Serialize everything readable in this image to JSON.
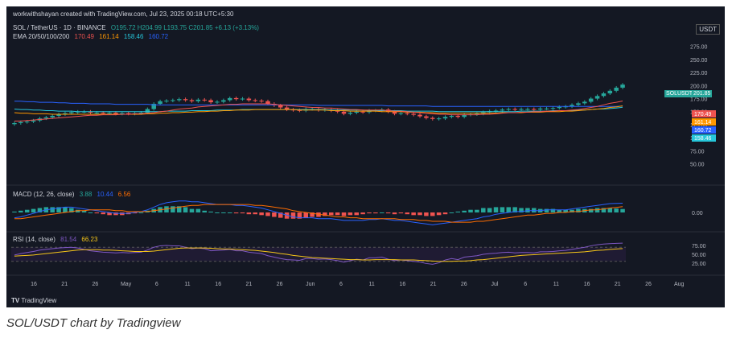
{
  "header": {
    "created_by": "workwithshayan created with TradingView.com, Jul 23, 2025 00:18 UTC+5:30",
    "symbol_line": "SOL / TetherUS · 1D · BINANCE",
    "ohlc": "O195.72  H204.99  L193.75  C201.85  +6.13 (+3.13%)",
    "ema_label": "EMA 20/50/100/200",
    "ema_values": [
      "170.49",
      "161.14",
      "158.46",
      "160.72"
    ],
    "currency": "USDT",
    "macd_label": "MACD (12, 26, close)",
    "macd_values": [
      "3.88",
      "10.44",
      "6.56"
    ],
    "rsi_label": "RSI (14, close)",
    "rsi_values": [
      "81.54",
      "66.23"
    ],
    "watermark": "TradingView",
    "symbol_tag": "SOLUSDT",
    "last_price": "201.85"
  },
  "caption": "SOL/USDT chart by Tradingview",
  "colors": {
    "up": "#26a69a",
    "down": "#ef5350",
    "ema20": "#ef5350",
    "ema50": "#ff9800",
    "ema100": "#26c6da",
    "ema200": "#2962ff",
    "macd": "#2962ff",
    "signal": "#ff6d00",
    "rsi": "#7e57c2",
    "rsi_ma": "#f5c518"
  },
  "chart_data": {
    "type": "candlestick",
    "price_axis_ticks": [
      "275.00",
      "250.00",
      "225.00",
      "200.00",
      "175.00",
      "150.00",
      "125.00",
      "100.00",
      "75.00",
      "50.00",
      "25.00"
    ],
    "price_ylim": [
      20,
      290
    ],
    "macd_ticks": [
      "0.00"
    ],
    "rsi_ticks": [
      "75.00",
      "50.00",
      "25.00"
    ],
    "x_ticks": [
      "16",
      "21",
      "26",
      "May",
      "6",
      "11",
      "16",
      "21",
      "26",
      "Jun",
      "6",
      "11",
      "16",
      "21",
      "26",
      "Jul",
      "6",
      "11",
      "16",
      "21",
      "26",
      "Aug"
    ],
    "closes": [
      128,
      130,
      131,
      133,
      137,
      139,
      142,
      145,
      147,
      149,
      150,
      150,
      148,
      148,
      147,
      148,
      146,
      147,
      146,
      147,
      148,
      155,
      165,
      170,
      171,
      172,
      174,
      172,
      170,
      173,
      172,
      168,
      169,
      172,
      176,
      174,
      175,
      172,
      171,
      170,
      165,
      162,
      158,
      154,
      153,
      152,
      155,
      155,
      153,
      154,
      152,
      150,
      146,
      148,
      150,
      149,
      152,
      152,
      154,
      150,
      146,
      147,
      146,
      144,
      141,
      138,
      136,
      137,
      140,
      142,
      140,
      144,
      145,
      146,
      149,
      151,
      152,
      154,
      155,
      154,
      155,
      155,
      154,
      156,
      156,
      157,
      159,
      160,
      163,
      166,
      169,
      175,
      180,
      185,
      190,
      196,
      201.85
    ],
    "ema20": [
      132,
      132,
      133,
      134,
      135,
      136,
      137,
      138,
      139,
      140,
      141,
      142,
      143,
      143,
      144,
      144,
      144,
      145,
      145,
      146,
      146,
      147,
      148,
      150,
      151,
      153,
      155,
      156,
      157,
      159,
      160,
      161,
      162,
      163,
      164,
      164,
      165,
      165,
      165,
      165,
      165,
      164,
      163,
      162,
      161,
      160,
      159,
      158,
      158,
      157,
      157,
      156,
      155,
      154,
      154,
      153,
      153,
      153,
      153,
      152,
      151,
      151,
      150,
      149,
      148,
      147,
      146,
      145,
      145,
      144,
      144,
      144,
      144,
      144,
      145,
      145,
      146,
      147,
      148,
      148,
      149,
      149,
      150,
      150,
      151,
      151,
      152,
      152,
      153,
      154,
      156,
      158,
      160,
      163,
      166,
      168,
      170.49
    ],
    "ema50": [
      148,
      147,
      147,
      146,
      146,
      146,
      145,
      145,
      145,
      145,
      145,
      145,
      145,
      145,
      145,
      145,
      145,
      145,
      145,
      145,
      145,
      146,
      146,
      147,
      147,
      148,
      148,
      149,
      149,
      150,
      150,
      151,
      151,
      152,
      152,
      153,
      153,
      153,
      154,
      154,
      154,
      154,
      154,
      154,
      154,
      153,
      153,
      153,
      153,
      153,
      152,
      152,
      152,
      151,
      151,
      151,
      151,
      151,
      150,
      150,
      150,
      150,
      149,
      149,
      149,
      148,
      148,
      147,
      147,
      147,
      147,
      147,
      147,
      147,
      147,
      147,
      147,
      148,
      148,
      148,
      148,
      149,
      149,
      149,
      150,
      150,
      150,
      151,
      151,
      152,
      153,
      154,
      155,
      156,
      158,
      159,
      161.14
    ],
    "ema100": [
      155,
      154,
      154,
      153,
      153,
      152,
      152,
      151,
      151,
      151,
      150,
      150,
      150,
      150,
      150,
      150,
      150,
      150,
      150,
      150,
      150,
      150,
      150,
      150,
      151,
      151,
      151,
      151,
      152,
      152,
      152,
      152,
      153,
      153,
      153,
      153,
      154,
      154,
      154,
      154,
      154,
      154,
      154,
      154,
      154,
      154,
      154,
      154,
      154,
      154,
      153,
      153,
      153,
      153,
      153,
      153,
      152,
      152,
      152,
      152,
      152,
      152,
      151,
      151,
      151,
      151,
      151,
      150,
      150,
      150,
      150,
      150,
      150,
      150,
      150,
      150,
      150,
      150,
      150,
      150,
      151,
      151,
      151,
      151,
      151,
      152,
      152,
      152,
      152,
      153,
      153,
      154,
      155,
      155,
      156,
      157,
      158.46
    ],
    "ema200": [
      170,
      170,
      169,
      169,
      168,
      168,
      168,
      167,
      167,
      166,
      166,
      166,
      165,
      165,
      165,
      165,
      164,
      164,
      164,
      164,
      164,
      164,
      163,
      163,
      163,
      163,
      163,
      163,
      163,
      163,
      163,
      163,
      163,
      163,
      163,
      163,
      163,
      163,
      163,
      163,
      163,
      163,
      163,
      163,
      163,
      163,
      163,
      163,
      162,
      162,
      162,
      162,
      162,
      162,
      162,
      162,
      162,
      162,
      162,
      161,
      161,
      161,
      161,
      161,
      161,
      161,
      160,
      160,
      160,
      160,
      160,
      160,
      160,
      160,
      160,
      160,
      160,
      160,
      160,
      160,
      160,
      160,
      160,
      160,
      160,
      160,
      160,
      160,
      160,
      160,
      160,
      160,
      160,
      160,
      160,
      160,
      160.72
    ],
    "macd_line": [
      -6,
      -5,
      -3,
      -1,
      1,
      3,
      4,
      5,
      6,
      6,
      5,
      4,
      3,
      2,
      1,
      0,
      -1,
      -1,
      -1,
      0,
      1,
      3,
      6,
      9,
      11,
      12,
      13,
      13,
      12,
      12,
      11,
      10,
      9,
      9,
      9,
      8,
      8,
      7,
      6,
      5,
      3,
      1,
      -1,
      -3,
      -5,
      -6,
      -6,
      -6,
      -7,
      -7,
      -7,
      -8,
      -9,
      -9,
      -9,
      -9,
      -8,
      -8,
      -7,
      -8,
      -9,
      -9,
      -10,
      -11,
      -12,
      -13,
      -14,
      -13,
      -12,
      -11,
      -10,
      -9,
      -8,
      -7,
      -5,
      -4,
      -2,
      -1,
      0,
      1,
      1,
      2,
      2,
      2,
      3,
      3,
      3,
      3,
      4,
      5,
      6,
      7,
      8,
      9,
      10,
      10.2,
      10.44
    ],
    "macd_signal": [
      -7,
      -7,
      -6,
      -5,
      -4,
      -3,
      -2,
      -1,
      0,
      1,
      2,
      2,
      3,
      3,
      3,
      3,
      2,
      2,
      1,
      1,
      1,
      1,
      2,
      3,
      4,
      5,
      6,
      7,
      8,
      8,
      9,
      9,
      9,
      9,
      9,
      9,
      9,
      9,
      8,
      8,
      7,
      6,
      5,
      4,
      2,
      1,
      0,
      -1,
      -2,
      -3,
      -4,
      -5,
      -5,
      -6,
      -6,
      -7,
      -7,
      -7,
      -7,
      -7,
      -7,
      -8,
      -8,
      -8,
      -9,
      -9,
      -10,
      -10,
      -10,
      -11,
      -11,
      -11,
      -11,
      -10,
      -10,
      -9,
      -8,
      -7,
      -6,
      -5,
      -4,
      -3,
      -3,
      -2,
      -1,
      -1,
      0,
      0,
      1,
      1,
      2,
      3,
      3,
      4,
      5,
      5.7,
      6.56
    ],
    "rsi": [
      48,
      52,
      55,
      58,
      62,
      64,
      66,
      68,
      69,
      70,
      68,
      64,
      60,
      58,
      56,
      55,
      54,
      55,
      54,
      55,
      56,
      62,
      70,
      74,
      75,
      74,
      74,
      70,
      66,
      68,
      66,
      60,
      61,
      62,
      64,
      60,
      60,
      56,
      54,
      52,
      46,
      42,
      38,
      35,
      34,
      33,
      38,
      38,
      36,
      37,
      35,
      32,
      28,
      32,
      36,
      34,
      40,
      40,
      42,
      36,
      32,
      34,
      32,
      30,
      28,
      24,
      22,
      26,
      34,
      38,
      35,
      42,
      44,
      46,
      50,
      52,
      53,
      55,
      56,
      54,
      55,
      55,
      54,
      57,
      57,
      58,
      60,
      61,
      64,
      67,
      70,
      74,
      77,
      79,
      80,
      81,
      81.54
    ],
    "rsi_ma": [
      45,
      46,
      47,
      48,
      50,
      52,
      54,
      56,
      58,
      60,
      62,
      63,
      63,
      63,
      62,
      62,
      61,
      60,
      59,
      58,
      58,
      58,
      59,
      61,
      63,
      65,
      67,
      68,
      68,
      68,
      68,
      67,
      66,
      65,
      65,
      64,
      63,
      62,
      61,
      59,
      57,
      55,
      52,
      50,
      47,
      45,
      43,
      41,
      40,
      39,
      38,
      37,
      36,
      35,
      35,
      34,
      34,
      35,
      35,
      35,
      35,
      34,
      34,
      34,
      33,
      32,
      31,
      30,
      30,
      30,
      31,
      31,
      32,
      34,
      35,
      37,
      39,
      41,
      43,
      45,
      47,
      48,
      49,
      50,
      51,
      52,
      53,
      54,
      55,
      56,
      57,
      59,
      61,
      62,
      64,
      65,
      66.23
    ]
  }
}
